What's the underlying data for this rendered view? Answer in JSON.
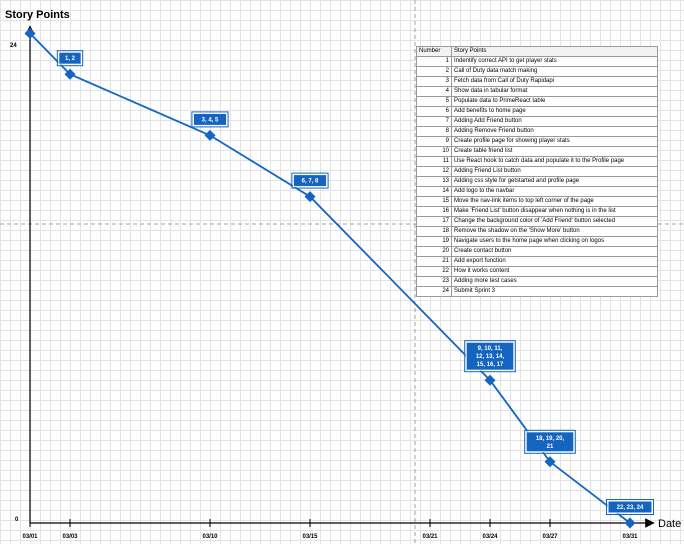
{
  "chart_data": {
    "type": "line",
    "ylabel": "Story Points",
    "xlabel": "Date",
    "y_ticks": [
      "24",
      "0"
    ],
    "ylim": [
      0,
      24
    ],
    "x_ticks": [
      "03/01",
      "03/03",
      "03/10",
      "03/15",
      "03/21",
      "03/24",
      "03/27",
      "03/31"
    ],
    "x_tick_days": [
      1,
      3,
      10,
      15,
      21,
      24,
      27,
      31
    ],
    "vertical_reference_date": "03/21",
    "series": [
      {
        "color": "#1565c0",
        "points": [
          {
            "x": "03/01",
            "y": 24,
            "label": ""
          },
          {
            "x": "03/03",
            "y": 22,
            "label": "1, 2"
          },
          {
            "x": "03/10",
            "y": 19,
            "label": "3, 4, 5"
          },
          {
            "x": "03/15",
            "y": 16,
            "label": "6, 7, 8"
          },
          {
            "x": "03/24",
            "y": 7,
            "label": "9, 10, 11, 12, 13, 14, 15, 16, 17"
          },
          {
            "x": "03/27",
            "y": 3,
            "label": "18, 19, 20, 21"
          },
          {
            "x": "03/31",
            "y": 0,
            "label": "22, 23, 24"
          }
        ]
      }
    ],
    "grid": true
  },
  "table": {
    "headers": [
      "Number",
      "Story Points"
    ],
    "rows": [
      [
        "1",
        "Indentify correct API to get player stats"
      ],
      [
        "2",
        "Call of Duty data match making"
      ],
      [
        "3",
        "Fetch data from Call of Duty Rapidapi"
      ],
      [
        "4",
        "Show data in tabular format"
      ],
      [
        "5",
        "Populate data to PrimeReact table"
      ],
      [
        "6",
        "Add benefits to home page"
      ],
      [
        "7",
        "Adding Add Friend button"
      ],
      [
        "8",
        "Adding Remove Friend button"
      ],
      [
        "9",
        "Create profile page for showing player stats"
      ],
      [
        "10",
        "Create table friend list"
      ],
      [
        "11",
        "Use React hook to catch data and populate it to the Profile page"
      ],
      [
        "12",
        "Adding Friend List button"
      ],
      [
        "13",
        "Adding css style for getstarted and profile page"
      ],
      [
        "14",
        "Add logo to the navbar"
      ],
      [
        "15",
        "Move the nav-link items to top left corner of the page"
      ],
      [
        "16",
        "Make 'Friend List' button disappear when nothing is in the list"
      ],
      [
        "17",
        "Change the background color of 'Add Friend' button selected"
      ],
      [
        "18",
        "Remove the shadow on the 'Show More' button"
      ],
      [
        "19",
        "Navigate users to the home page when clicking on logos"
      ],
      [
        "20",
        "Create contact button"
      ],
      [
        "21",
        "Add export function"
      ],
      [
        "22",
        "How it works content"
      ],
      [
        "23",
        "Adding more test cases"
      ],
      [
        "24",
        "Submit Sprint 3"
      ]
    ]
  }
}
